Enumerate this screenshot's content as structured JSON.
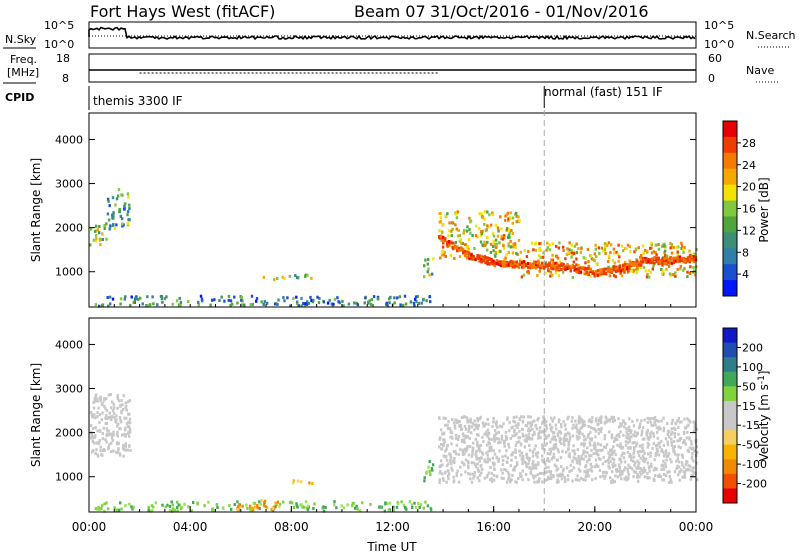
{
  "header": {
    "title": "Fort Hays West (fitACF)",
    "beam": "Beam 07",
    "date_range": "31/Oct/2016 - 01/Nov/2016"
  },
  "colors": {
    "power_scale": [
      "#0018f8",
      "#1a4fd0",
      "#2f7fa6",
      "#3c8f76",
      "#4da53c",
      "#7fc840",
      "#f4e200",
      "#f6a800",
      "#f47a00",
      "#ef3d00",
      "#e80000"
    ],
    "velocity_scale": [
      "#e80000",
      "#f05000",
      "#f28a00",
      "#f7b300",
      "#f6cf60",
      "#c8c8c8",
      "#c8c8c8",
      "#7fd33c",
      "#3fa85a",
      "#2d7e8a",
      "#1e4fb0",
      "#1018c8"
    ],
    "ground_scatter": "#c8c8c8"
  },
  "chart_data": [
    {
      "type": "line",
      "name": "sky-noise-panel",
      "ylabel": "N.Sky",
      "right_label": "N.Search",
      "yticks_left": [
        "10^5",
        "10^0"
      ],
      "yticks_right": [
        "10^5",
        "10^0"
      ]
    },
    {
      "type": "line",
      "name": "frequency-panel",
      "ylabel_line1": "Freq.",
      "ylabel_line2": "[MHz]",
      "right_label": "Nave",
      "yticks_left": [
        "18",
        "8"
      ],
      "yticks_right": [
        "60",
        "0"
      ]
    },
    {
      "type": "table",
      "name": "cpid-panel",
      "label": "CPID",
      "segments": [
        {
          "start_hour": 0,
          "text": "themis 3300 IF"
        },
        {
          "start_hour": 18,
          "text": "normal (fast) 151 IF"
        }
      ]
    },
    {
      "type": "heatmap",
      "name": "power-panel",
      "ylabel": "Slant Range [km]",
      "xlim": [
        0,
        24
      ],
      "ylim": [
        200,
        4600
      ],
      "yticks": [
        1000,
        2000,
        3000,
        4000
      ],
      "colorbar_label": "Power [dB]",
      "colorbar_ticks": [
        "28",
        "24",
        "20",
        "16",
        "12",
        "8",
        "4"
      ],
      "colorbar_range": [
        0,
        30
      ],
      "scatter_regions": [
        {
          "t0": 0.0,
          "t1": 0.7,
          "r0": 1600,
          "r1": 2150,
          "value": 14
        },
        {
          "t0": 0.7,
          "t1": 1.6,
          "r0": 2000,
          "r1": 2900,
          "value": 10
        },
        {
          "t0": 0.2,
          "t1": 13.5,
          "r0": 250,
          "r1": 480,
          "value": 9
        },
        {
          "t0": 6.8,
          "t1": 8.8,
          "r0": 850,
          "r1": 980,
          "value": 14
        },
        {
          "t0": 13.2,
          "t1": 13.6,
          "r0": 900,
          "r1": 1350,
          "value": 14
        },
        {
          "t0": 13.8,
          "t1": 17.0,
          "r0": 1300,
          "r1": 2400,
          "value": 18
        },
        {
          "t0": 17.0,
          "t1": 24.0,
          "r0": 900,
          "r1": 1700,
          "value": 20
        }
      ],
      "backscatter_band": {
        "t": [
          13.8,
          15,
          16,
          17,
          18,
          19,
          20,
          21,
          22,
          23,
          24
        ],
        "r": [
          1800,
          1400,
          1230,
          1200,
          1180,
          1120,
          1000,
          1120,
          1280,
          1290,
          1330
        ],
        "value": 28
      }
    },
    {
      "type": "heatmap",
      "name": "velocity-panel",
      "ylabel": "Slant Range [km]",
      "xlabel": "Time UT",
      "xlim": [
        0,
        24
      ],
      "ylim": [
        200,
        4600
      ],
      "yticks": [
        1000,
        2000,
        3000,
        4000
      ],
      "xticks": [
        "00:00",
        "04:00",
        "08:00",
        "12:00",
        "16:00",
        "20:00",
        "00:00"
      ],
      "colorbar_label": "Velocity [m s^-1]",
      "colorbar_ticks": [
        "200",
        "100",
        "50",
        "15",
        "-15",
        "-50",
        "-100",
        "-200"
      ],
      "scatter_regions": [
        {
          "t0": 0.0,
          "t1": 1.6,
          "r0": 1500,
          "r1": 2900,
          "kind": "ground"
        },
        {
          "t0": 0.2,
          "t1": 13.5,
          "r0": 250,
          "r1": 470,
          "kind": "positive"
        },
        {
          "t0": 5.8,
          "t1": 7.5,
          "r0": 250,
          "r1": 500,
          "kind": "negative"
        },
        {
          "t0": 7.8,
          "t1": 8.8,
          "r0": 850,
          "r1": 960,
          "kind": "negative"
        },
        {
          "t0": 13.2,
          "t1": 13.6,
          "r0": 900,
          "r1": 1400,
          "kind": "positive"
        },
        {
          "t0": 13.8,
          "t1": 24.0,
          "r0": 900,
          "r1": 2400,
          "kind": "ground"
        }
      ]
    }
  ],
  "marker_hour": 18
}
